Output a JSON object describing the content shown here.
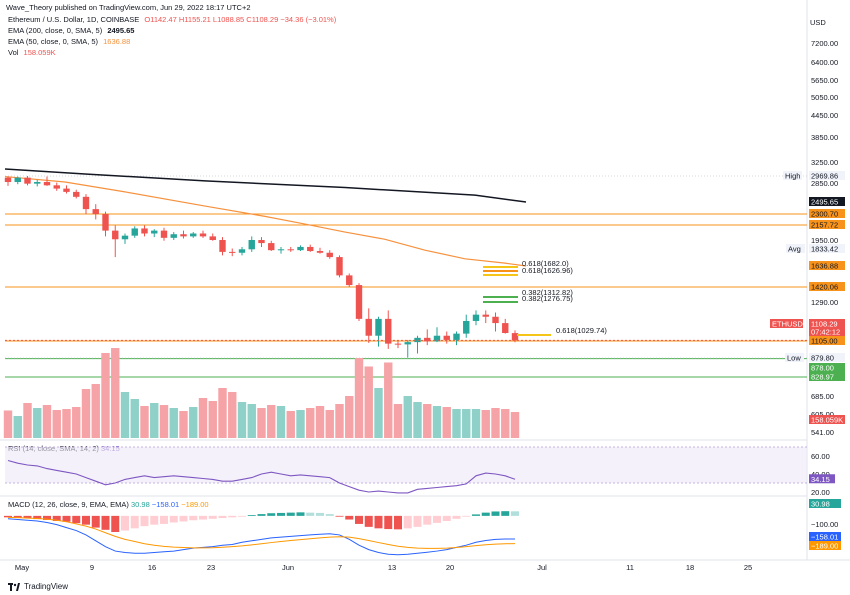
{
  "header": {
    "published": "Wave_Theory published on TradingView.com, Jun 29, 2022 18:17 UTC+2",
    "symbol": "Ethereum / U.S. Dollar, 1D, COINBASE",
    "ohlc": "O1142.47 H1155.21 L1088.85 C1108.29 −34.36 (−3.01%)",
    "ema200_label": "EMA (200, close, 0, SMA, 5)",
    "ema200_value": "2495.65",
    "ema50_label": "EMA (50, close, 0, SMA, 5)",
    "ema50_value": "1636.88",
    "vol_label": "Vol",
    "vol_value": "158.059K",
    "currency": "USD"
  },
  "colors": {
    "up": "#26a69a",
    "down": "#ef5350",
    "up_vol": "#8fd1c9",
    "down_vol": "#f5a3a6",
    "ema200": "#131722",
    "ema50": "#f7913d",
    "orange": "#f7931a",
    "green": "#4caf50",
    "yellow": "#f5c518",
    "rsi": "#7e57c2",
    "macd": "#2962ff",
    "signal": "#ff9800"
  },
  "price_axis": {
    "ticks": [
      "7200.00",
      "6400.00",
      "5650.00",
      "5050.00",
      "4450.00",
      "3850.00",
      "3250.00",
      "2850.00",
      "1950.00",
      "1290.00",
      "685.00",
      "605.00",
      "541.00"
    ]
  },
  "price_tags": [
    {
      "id": "high-label",
      "text": "High",
      "style": "label"
    },
    {
      "id": "high",
      "text": "2969.86",
      "style": "gray"
    },
    {
      "id": "ema200",
      "text": "2495.65",
      "style": "black"
    },
    {
      "id": "h2300",
      "text": "2300.70",
      "style": "orange"
    },
    {
      "id": "h2157",
      "text": "2157.72",
      "style": "orange"
    },
    {
      "id": "avg-label",
      "text": "Avg",
      "style": "label"
    },
    {
      "id": "avg",
      "text": "1833.42",
      "style": "gray"
    },
    {
      "id": "ema50",
      "text": "1636.88",
      "style": "orange"
    },
    {
      "id": "h1420",
      "text": "1420.06",
      "style": "orange"
    },
    {
      "id": "symbol",
      "text": "ETHUSD",
      "style": "redtag"
    },
    {
      "id": "last",
      "text": "1108.29",
      "style": "red"
    },
    {
      "id": "countdown",
      "text": "07:42:12",
      "style": "red"
    },
    {
      "id": "h1105",
      "text": "1105.00",
      "style": "orange"
    },
    {
      "id": "low-label",
      "text": "Low",
      "style": "label"
    },
    {
      "id": "low",
      "text": "879.80",
      "style": "gray"
    },
    {
      "id": "g878",
      "text": "878.00",
      "style": "green"
    },
    {
      "id": "g828",
      "text": "828.97",
      "style": "green"
    },
    {
      "id": "vol",
      "text": "158.059K",
      "style": "red"
    }
  ],
  "fib_labels": {
    "f1": "0.618(1682.0)",
    "f2": "0.618(1626.96)",
    "g1": "0.382(1312.82)",
    "g2": "0.382(1276.75)",
    "y1": "0.618(1029.74)"
  },
  "rsi": {
    "label": "RSI (14, close, SMA, 14, 2)",
    "value": "34.15",
    "axis": [
      "60.00",
      "40.00",
      "20.00"
    ],
    "tag": "34.15"
  },
  "macd": {
    "label": "MACD (12, 26, close, 9, EMA, EMA)",
    "v1": "30.98",
    "v2": "−158.01",
    "v3": "−189.00",
    "axis": [
      "−100.00"
    ],
    "tags": [
      "30.98",
      "−158.01",
      "−189.00"
    ]
  },
  "time_axis": [
    "May",
    "9",
    "16",
    "23",
    "Jun",
    "7",
    "13",
    "20",
    "Jul",
    "11",
    "18",
    "25"
  ],
  "footer": {
    "brand": "TradingView"
  },
  "chart_data": {
    "type": "candlestick",
    "symbol": "ETHUSD",
    "interval": "1D",
    "candles": [
      {
        "o": 2940,
        "h": 2960,
        "l": 2790,
        "c": 2860
      },
      {
        "o": 2860,
        "h": 2960,
        "l": 2820,
        "c": 2940
      },
      {
        "o": 2940,
        "h": 2970,
        "l": 2800,
        "c": 2830
      },
      {
        "o": 2830,
        "h": 2900,
        "l": 2780,
        "c": 2860
      },
      {
        "o": 2860,
        "h": 2960,
        "l": 2790,
        "c": 2800
      },
      {
        "o": 2800,
        "h": 2850,
        "l": 2700,
        "c": 2740
      },
      {
        "o": 2740,
        "h": 2800,
        "l": 2650,
        "c": 2680
      },
      {
        "o": 2680,
        "h": 2720,
        "l": 2560,
        "c": 2590
      },
      {
        "o": 2590,
        "h": 2640,
        "l": 2300,
        "c": 2380
      },
      {
        "o": 2380,
        "h": 2460,
        "l": 2230,
        "c": 2300
      },
      {
        "o": 2300,
        "h": 2340,
        "l": 2000,
        "c": 2080
      },
      {
        "o": 2080,
        "h": 2150,
        "l": 1740,
        "c": 1960
      },
      {
        "o": 1960,
        "h": 2040,
        "l": 1900,
        "c": 2010
      },
      {
        "o": 2010,
        "h": 2140,
        "l": 1980,
        "c": 2110
      },
      {
        "o": 2110,
        "h": 2150,
        "l": 2000,
        "c": 2040
      },
      {
        "o": 2040,
        "h": 2100,
        "l": 1990,
        "c": 2080
      },
      {
        "o": 2080,
        "h": 2120,
        "l": 1940,
        "c": 1980
      },
      {
        "o": 1980,
        "h": 2060,
        "l": 1950,
        "c": 2030
      },
      {
        "o": 2030,
        "h": 2080,
        "l": 1970,
        "c": 2000
      },
      {
        "o": 2000,
        "h": 2060,
        "l": 1980,
        "c": 2040
      },
      {
        "o": 2040,
        "h": 2080,
        "l": 1980,
        "c": 2000
      },
      {
        "o": 2000,
        "h": 2040,
        "l": 1940,
        "c": 1950
      },
      {
        "o": 1950,
        "h": 1990,
        "l": 1760,
        "c": 1800
      },
      {
        "o": 1800,
        "h": 1840,
        "l": 1750,
        "c": 1790
      },
      {
        "o": 1790,
        "h": 1860,
        "l": 1760,
        "c": 1830
      },
      {
        "o": 1830,
        "h": 2000,
        "l": 1800,
        "c": 1950
      },
      {
        "o": 1950,
        "h": 1990,
        "l": 1860,
        "c": 1910
      },
      {
        "o": 1910,
        "h": 1940,
        "l": 1810,
        "c": 1820
      },
      {
        "o": 1820,
        "h": 1860,
        "l": 1780,
        "c": 1830
      },
      {
        "o": 1830,
        "h": 1860,
        "l": 1800,
        "c": 1820
      },
      {
        "o": 1820,
        "h": 1880,
        "l": 1810,
        "c": 1860
      },
      {
        "o": 1860,
        "h": 1890,
        "l": 1800,
        "c": 1810
      },
      {
        "o": 1810,
        "h": 1850,
        "l": 1780,
        "c": 1790
      },
      {
        "o": 1790,
        "h": 1820,
        "l": 1720,
        "c": 1740
      },
      {
        "o": 1740,
        "h": 1760,
        "l": 1520,
        "c": 1540
      },
      {
        "o": 1540,
        "h": 1560,
        "l": 1420,
        "c": 1440
      },
      {
        "o": 1440,
        "h": 1460,
        "l": 1200,
        "c": 1210
      },
      {
        "o": 1210,
        "h": 1260,
        "l": 1080,
        "c": 1130
      },
      {
        "o": 1130,
        "h": 1220,
        "l": 1030,
        "c": 1210
      },
      {
        "o": 1210,
        "h": 1250,
        "l": 1000,
        "c": 1070
      },
      {
        "o": 1070,
        "h": 1100,
        "l": 1010,
        "c": 1060
      },
      {
        "o": 1060,
        "h": 1110,
        "l": 885,
        "c": 1090
      },
      {
        "o": 1090,
        "h": 1130,
        "l": 940,
        "c": 1120
      },
      {
        "o": 1120,
        "h": 1160,
        "l": 1050,
        "c": 1100
      },
      {
        "o": 1100,
        "h": 1170,
        "l": 1090,
        "c": 1130
      },
      {
        "o": 1130,
        "h": 1150,
        "l": 1070,
        "c": 1110
      },
      {
        "o": 1110,
        "h": 1150,
        "l": 1050,
        "c": 1140
      },
      {
        "o": 1140,
        "h": 1230,
        "l": 1120,
        "c": 1200
      },
      {
        "o": 1200,
        "h": 1250,
        "l": 1180,
        "c": 1230
      },
      {
        "o": 1230,
        "h": 1250,
        "l": 1190,
        "c": 1220
      },
      {
        "o": 1220,
        "h": 1240,
        "l": 1150,
        "c": 1190
      },
      {
        "o": 1190,
        "h": 1210,
        "l": 1140,
        "c": 1143
      },
      {
        "o": 1142.47,
        "h": 1155.21,
        "l": 1088.85,
        "c": 1108.29
      }
    ],
    "volume": [
      55,
      44,
      70,
      60,
      66,
      56,
      58,
      62,
      98,
      108,
      170,
      180,
      92,
      78,
      64,
      70,
      66,
      60,
      54,
      62,
      80,
      74,
      100,
      92,
      72,
      68,
      60,
      66,
      64,
      54,
      56,
      60,
      64,
      56,
      68,
      84,
      160,
      143,
      100,
      151,
      68,
      84,
      72,
      68,
      64,
      62,
      58,
      58,
      58,
      56,
      60,
      58,
      52
    ],
    "ema200": [
      [
        0,
        3110
      ],
      [
        80,
        3010
      ],
      [
        200,
        2880
      ],
      [
        340,
        2760
      ],
      [
        470,
        2620
      ],
      [
        521,
        2495.65
      ]
    ],
    "ema50": [
      [
        0,
        2960
      ],
      [
        60,
        2860
      ],
      [
        120,
        2680
      ],
      [
        200,
        2430
      ],
      [
        260,
        2270
      ],
      [
        300,
        2170
      ],
      [
        340,
        2060
      ],
      [
        380,
        1960
      ],
      [
        420,
        1820
      ],
      [
        460,
        1720
      ],
      [
        500,
        1670
      ],
      [
        521,
        1636.88
      ]
    ],
    "rsi": [
      55,
      52,
      50,
      49,
      46,
      44,
      42,
      40,
      36,
      32,
      28,
      30,
      34,
      36,
      38,
      36,
      37,
      38,
      37,
      36,
      35,
      34,
      32,
      32,
      34,
      36,
      40,
      42,
      40,
      38,
      39,
      38,
      37,
      36,
      30,
      26,
      22,
      20,
      21,
      20,
      19,
      19,
      23,
      24,
      25,
      26,
      27,
      29,
      38,
      41,
      40,
      38,
      34.15
    ],
    "macd_hist": [
      -10,
      -15,
      -18,
      -22,
      -28,
      -35,
      -40,
      -50,
      -60,
      -80,
      -95,
      -110,
      -100,
      -85,
      -70,
      -60,
      -55,
      -45,
      -38,
      -30,
      -25,
      -20,
      -15,
      -10,
      -5,
      5,
      12,
      18,
      20,
      22,
      24,
      22,
      20,
      12,
      -5,
      -25,
      -55,
      -75,
      -85,
      -90,
      -92,
      -85,
      -75,
      -60,
      -48,
      -35,
      -20,
      -5,
      10,
      22,
      30,
      32,
      30.98
    ],
    "macd_line": [
      -20,
      -25,
      -30,
      -35,
      -45,
      -60,
      -80,
      -100,
      -130,
      -170,
      -210,
      -240,
      -250,
      -255,
      -255,
      -250,
      -245,
      -240,
      -230,
      -220,
      -215,
      -210,
      -200,
      -195,
      -180,
      -170,
      -160,
      -150,
      -145,
      -140,
      -135,
      -130,
      -125,
      -122,
      -130,
      -160,
      -200,
      -230,
      -250,
      -262,
      -265,
      -262,
      -255,
      -248,
      -240,
      -230,
      -215,
      -200,
      -180,
      -168,
      -160,
      -158.01,
      -158.01
    ],
    "macd_signal": [
      -10,
      -12,
      -15,
      -18,
      -22,
      -30,
      -40,
      -55,
      -70,
      -90,
      -115,
      -140,
      -160,
      -175,
      -190,
      -200,
      -208,
      -213,
      -216,
      -218,
      -218,
      -217,
      -214,
      -210,
      -205,
      -198,
      -190,
      -182,
      -175,
      -168,
      -162,
      -156,
      -150,
      -145,
      -142,
      -145,
      -155,
      -168,
      -182,
      -195,
      -207,
      -215,
      -220,
      -222,
      -222,
      -220,
      -216,
      -210,
      -203,
      -197,
      -193,
      -190,
      -189.0
    ],
    "horizontal_levels": [
      2300.7,
      2157.72,
      1420.06,
      1105.0,
      878.0,
      828.97
    ]
  }
}
